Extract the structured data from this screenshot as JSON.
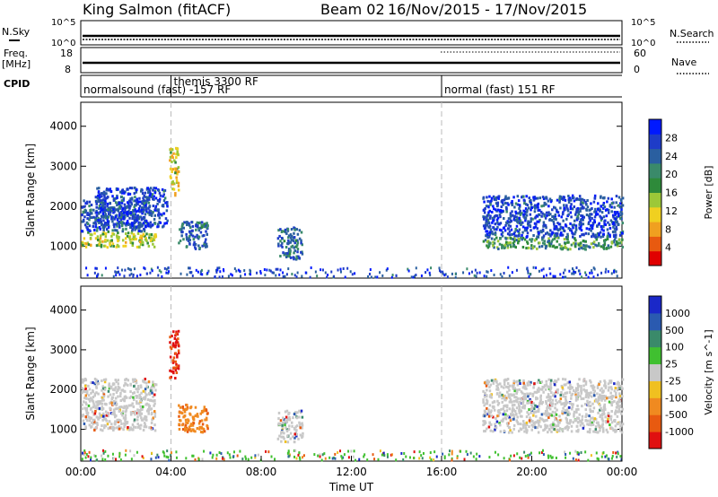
{
  "header": {
    "station": "King Salmon (fitACF)",
    "beam": "Beam 02",
    "date_range": "16/Nov/2015 - 17/Nov/2015"
  },
  "params": {
    "nsky_label": "N.Sky",
    "nsky_ticks": [
      "10^5",
      "10^0"
    ],
    "nsearch_label": "N.Search",
    "nsearch_ticks": [
      "10^5",
      "10^0"
    ],
    "freq_label": "Freq.",
    "freq_unit": "[MHz]",
    "freq_ticks": [
      "18",
      "8"
    ],
    "nave_label": "Nave",
    "nave_ticks": [
      "60",
      "0"
    ],
    "cpid_label": "CPID",
    "cpid_segments": [
      {
        "text": "normalsound (fast) -157 RF",
        "start": 0.0
      },
      {
        "text": "themis 3300 RF",
        "start": 4.0
      },
      {
        "text": "normal (fast) 151 RF",
        "start": 16.0
      }
    ]
  },
  "chart_data": [
    {
      "type": "heatmap",
      "name": "power",
      "ylabel": "Slant Range [km]",
      "xlim_hours": [
        0,
        24
      ],
      "ylim": [
        200,
        4600
      ],
      "yticks": [
        "1000",
        "2000",
        "3000",
        "4000"
      ],
      "colorbar": {
        "label": "Power [dB]",
        "ticks": [
          "28",
          "24",
          "20",
          "16",
          "12",
          "8",
          "4"
        ],
        "colors": [
          "#0019ff",
          "#1e3cc8",
          "#2a5fa0",
          "#3a8a6a",
          "#2e8a3a",
          "#9cc838",
          "#f0d020",
          "#f0a020",
          "#e85a10",
          "#e00000"
        ]
      },
      "regions": [
        {
          "t": [
            0.0,
            3.3
          ],
          "r": [
            1000,
            1400
          ],
          "level": 0.55
        },
        {
          "t": [
            0.0,
            3.0
          ],
          "r": [
            1400,
            2200
          ],
          "level": 0.15
        },
        {
          "t": [
            0.6,
            3.8
          ],
          "r": [
            1500,
            2500
          ],
          "level": 0.1
        },
        {
          "t": [
            3.9,
            4.3
          ],
          "r": [
            2300,
            3500
          ],
          "level": 0.6
        },
        {
          "t": [
            4.3,
            5.6
          ],
          "r": [
            950,
            1650
          ],
          "level": 0.2
        },
        {
          "t": [
            8.7,
            9.8
          ],
          "r": [
            700,
            1500
          ],
          "level": 0.2
        },
        {
          "t": [
            17.8,
            24.0
          ],
          "r": [
            950,
            1250
          ],
          "level": 0.35
        },
        {
          "t": [
            17.8,
            24.0
          ],
          "r": [
            1250,
            2300
          ],
          "level": 0.1
        }
      ]
    },
    {
      "type": "heatmap",
      "name": "velocity",
      "ylabel": "Slant Range [km]",
      "xlim_hours": [
        0,
        24
      ],
      "ylim": [
        200,
        4600
      ],
      "yticks": [
        "1000",
        "2000",
        "3000",
        "4000"
      ],
      "xticks": [
        "00:00",
        "04:00",
        "08:00",
        "12:00",
        "16:00",
        "20:00",
        "00:00"
      ],
      "xlabel": "Time UT",
      "colorbar": {
        "label": "Velocity [m s^-1]",
        "ticks": [
          "1000",
          "500",
          "100",
          "25",
          "-25",
          "-100",
          "-500",
          "-1000"
        ],
        "colors": [
          "#1a28c8",
          "#2a5ab0",
          "#3a8a6a",
          "#40c030",
          "#c8c8c8",
          "#f0c020",
          "#f08a20",
          "#e85a10",
          "#e01010"
        ]
      },
      "regions": [
        {
          "t": [
            0.0,
            3.3
          ],
          "r": [
            1000,
            2300
          ],
          "level": 0.45
        },
        {
          "t": [
            3.9,
            4.3
          ],
          "r": [
            2300,
            3500
          ],
          "level": 0.95
        },
        {
          "t": [
            4.3,
            5.6
          ],
          "r": [
            950,
            1650
          ],
          "level": 0.8
        },
        {
          "t": [
            8.7,
            9.8
          ],
          "r": [
            700,
            1500
          ],
          "level": 0.6
        },
        {
          "t": [
            17.8,
            24.0
          ],
          "r": [
            950,
            2300
          ],
          "level": 0.45
        }
      ]
    }
  ]
}
